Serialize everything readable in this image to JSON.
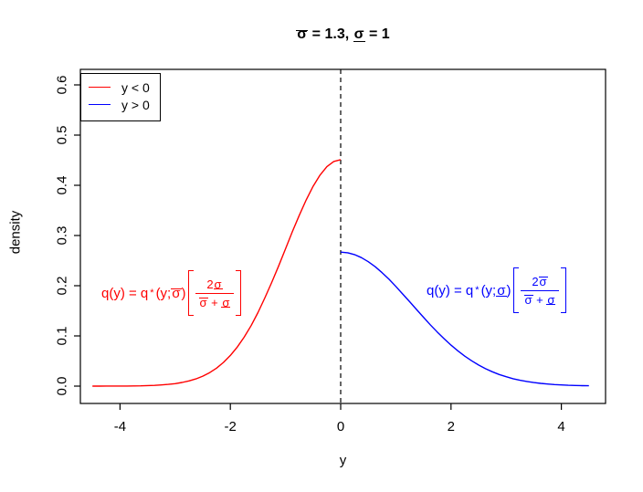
{
  "title": {
    "sigma_bar": "σ",
    "mid": " = 1.3, ",
    "sigma_under": "σ",
    "end": " = 1"
  },
  "axes": {
    "xlabel": "y",
    "ylabel": "density",
    "x_tick_labels": [
      "-4",
      "-2",
      "0",
      "2",
      "4"
    ],
    "y_tick_labels": [
      "0.0",
      "0.1",
      "0.2",
      "0.3",
      "0.4",
      "0.5",
      "0.6"
    ]
  },
  "legend": {
    "items": [
      {
        "label": "y < 0",
        "color": "#ff0000"
      },
      {
        "label": "y > 0",
        "color": "#0000ff"
      }
    ]
  },
  "formulas": {
    "red": {
      "color": "#ff0000",
      "lhs": "q(y) = q",
      "sup": "*",
      "open": "(y;",
      "arg_sigma": "σ",
      "close": ")",
      "num_coef": "2",
      "num_sigma": "σ",
      "den_sigma1": "σ",
      "den_op": " + ",
      "den_sigma2": "σ"
    },
    "blue": {
      "color": "#0000ff",
      "lhs": "q(y) = q",
      "sup": "*",
      "open": "(y;",
      "arg_sigma": "σ",
      "close": ")",
      "num_coef": "2",
      "num_sigma": "σ",
      "den_sigma1": "σ",
      "den_op": " + ",
      "den_sigma2": "σ"
    }
  },
  "chart_data": {
    "type": "line",
    "title": "sigma-bar = 1.3, sigma-underline = 1",
    "xlabel": "y",
    "ylabel": "density",
    "x_ticks": [
      -4,
      -2,
      0,
      2,
      4
    ],
    "y_ticks": [
      0,
      0.1,
      0.2,
      0.3,
      0.4,
      0.5,
      0.6
    ],
    "xlim": [
      -4.72,
      4.8
    ],
    "ylim": [
      -0.035,
      0.633
    ],
    "grid": false,
    "legend_position": "topleft",
    "vline_x": 0,
    "vline_style": "dashed",
    "discontinuity_at_0": {
      "left_value": 0.451,
      "right_value": 0.267
    },
    "series": [
      {
        "name": "y < 0",
        "color": "#ff0000",
        "x": [
          -4.5,
          -4.375,
          -4.25,
          -4.125,
          -4.0,
          -3.875,
          -3.75,
          -3.625,
          -3.5,
          -3.375,
          -3.25,
          -3.125,
          -3.0,
          -2.875,
          -2.75,
          -2.625,
          -2.5,
          -2.375,
          -2.25,
          -2.125,
          -2.0,
          -1.875,
          -1.75,
          -1.625,
          -1.5,
          -1.375,
          -1.25,
          -1.125,
          -1.0,
          -0.875,
          -0.75,
          -0.625,
          -0.5,
          -0.375,
          -0.25,
          -0.125,
          0
        ],
        "y": [
          0.0,
          0.0,
          0.0001,
          0.0001,
          0.0002,
          0.0002,
          0.0004,
          0.0006,
          0.001,
          0.0015,
          0.0023,
          0.0034,
          0.005,
          0.0073,
          0.0103,
          0.0144,
          0.0198,
          0.0269,
          0.0359,
          0.0472,
          0.061,
          0.0778,
          0.0975,
          0.1204,
          0.1464,
          0.1754,
          0.2065,
          0.2395,
          0.2735,
          0.3076,
          0.3404,
          0.371,
          0.398,
          0.4204,
          0.4371,
          0.4475,
          0.451
        ]
      },
      {
        "name": "y > 0",
        "color": "#0000ff",
        "x": [
          0,
          0.125,
          0.25,
          0.375,
          0.5,
          0.625,
          0.75,
          0.875,
          1.0,
          1.125,
          1.25,
          1.375,
          1.5,
          1.625,
          1.75,
          1.875,
          2.0,
          2.125,
          2.25,
          2.375,
          2.5,
          2.625,
          2.75,
          2.875,
          3.0,
          3.125,
          3.25,
          3.375,
          3.5,
          3.625,
          3.75,
          3.875,
          4.0,
          4.125,
          4.25,
          4.375,
          4.5
        ],
        "y": [
          0.2669,
          0.2657,
          0.262,
          0.256,
          0.2479,
          0.2378,
          0.226,
          0.2129,
          0.1986,
          0.1835,
          0.1681,
          0.1526,
          0.1372,
          0.1222,
          0.1079,
          0.0943,
          0.0817,
          0.0702,
          0.0597,
          0.0503,
          0.042,
          0.0348,
          0.0285,
          0.0231,
          0.0187,
          0.0148,
          0.0117,
          0.0092,
          0.0071,
          0.0055,
          0.0042,
          0.0031,
          0.0023,
          0.0017,
          0.0013,
          0.0009,
          0.0007
        ]
      }
    ]
  }
}
